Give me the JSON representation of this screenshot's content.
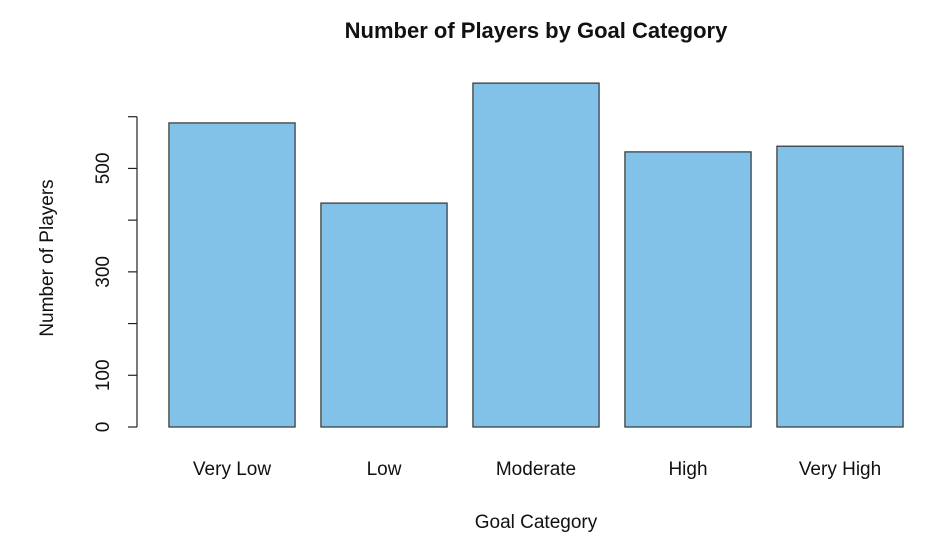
{
  "chart_data": {
    "type": "bar",
    "title": "Number of Players by Goal Category",
    "x_label": "Goal Category",
    "y_label": "Number of Players",
    "categories": [
      "Very Low",
      "Low",
      "Moderate",
      "High",
      "Very High"
    ],
    "values": [
      588,
      433,
      665,
      532,
      543
    ],
    "color": "#82c1e8",
    "ylim": [
      0,
      700
    ],
    "yticks": [
      0,
      100,
      300,
      500
    ],
    "yticks_unlabeled": [
      200,
      400,
      600
    ],
    "grid": false
  }
}
